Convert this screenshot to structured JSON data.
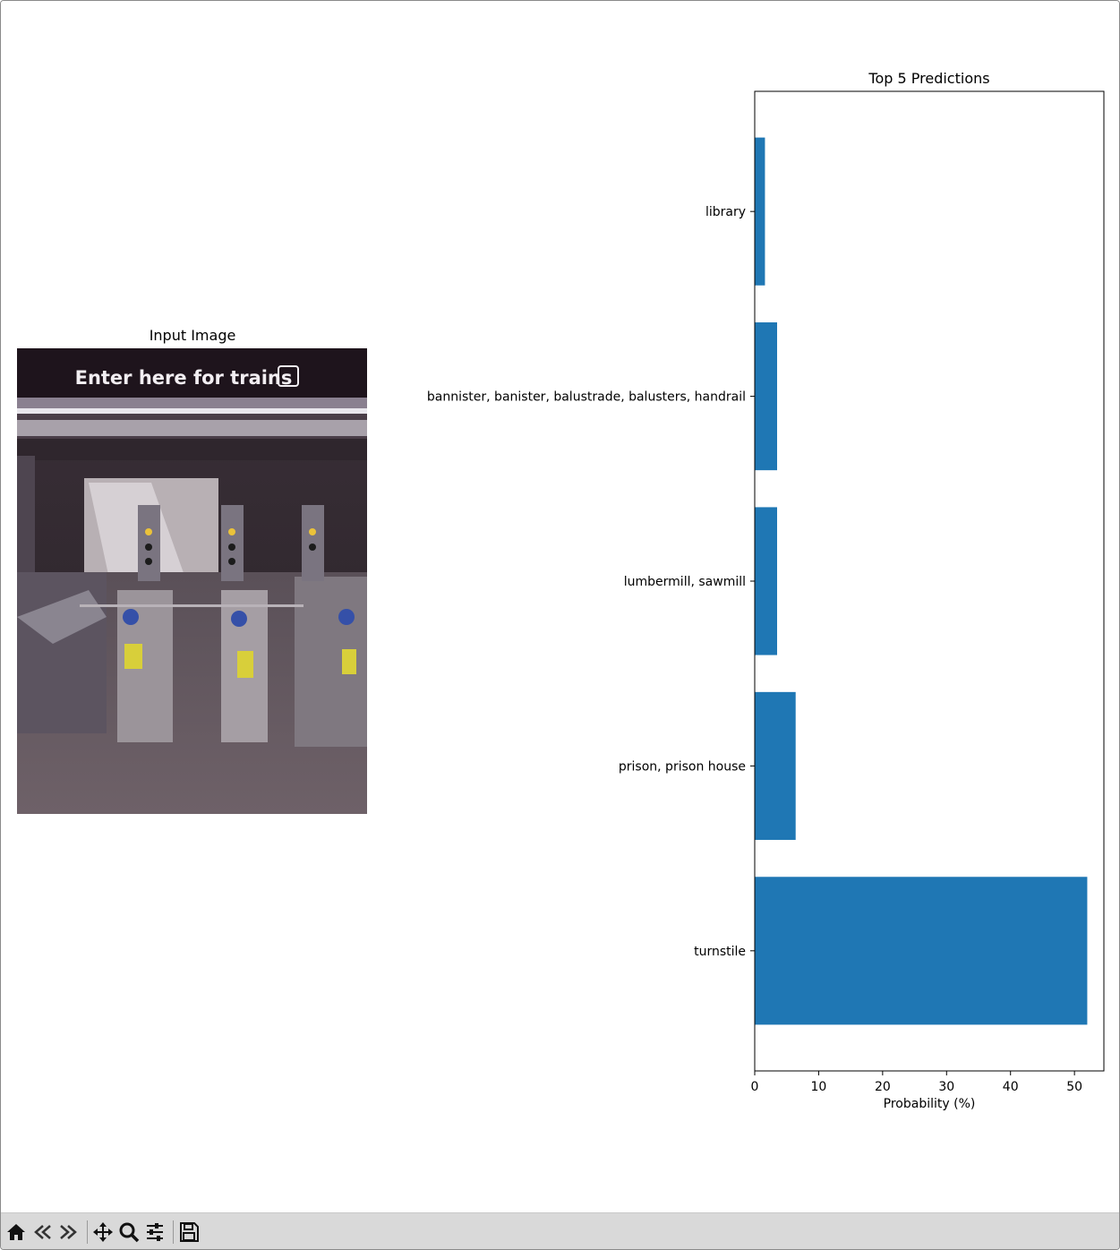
{
  "figure": {
    "input_panel": {
      "title": "Input Image",
      "sign_text": "Enter here for trains"
    },
    "chart_panel": {
      "title": "Top 5 Predictions"
    }
  },
  "chart_data": {
    "type": "bar",
    "orientation": "horizontal",
    "title": "Top 5 Predictions",
    "xlabel": "Probability (%)",
    "ylabel": "",
    "categories": [
      "turnstile",
      "prison, prison house",
      "lumbermill, sawmill",
      "bannister, banister, balustrade, balusters, handrail",
      "library"
    ],
    "values": [
      52.0,
      6.4,
      3.5,
      3.5,
      1.6
    ],
    "xlim": [
      0,
      54.6
    ],
    "xticks": [
      0,
      10,
      20,
      30,
      40,
      50
    ],
    "bar_color": "#1f77b4",
    "grid": false
  },
  "toolbar": {
    "buttons": [
      {
        "name": "home-icon",
        "tooltip": "Home"
      },
      {
        "name": "back-icon",
        "tooltip": "Back"
      },
      {
        "name": "forward-icon",
        "tooltip": "Forward"
      },
      {
        "name": "pan-icon",
        "tooltip": "Pan"
      },
      {
        "name": "zoom-icon",
        "tooltip": "Zoom"
      },
      {
        "name": "configure-subplots-icon",
        "tooltip": "Configure subplots"
      },
      {
        "name": "save-icon",
        "tooltip": "Save"
      }
    ]
  }
}
